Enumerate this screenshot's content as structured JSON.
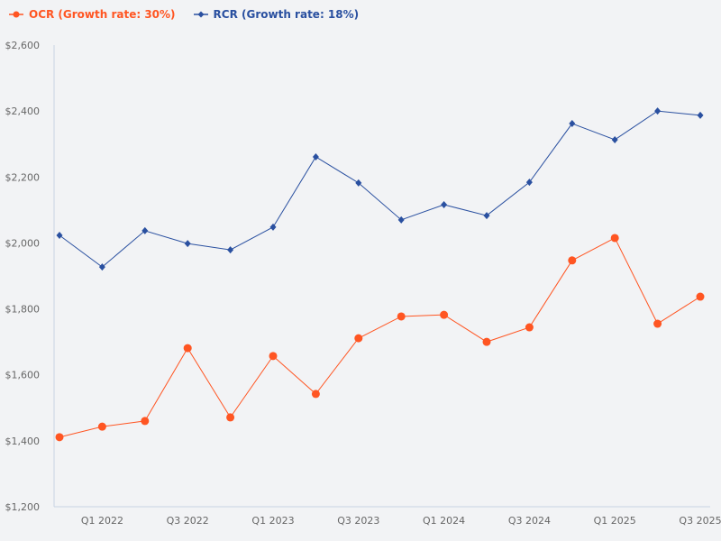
{
  "chart_data": {
    "type": "line",
    "title": "",
    "xlabel": "",
    "ylabel": "",
    "ylim": [
      1200,
      2600
    ],
    "yticks": [
      1200,
      1400,
      1600,
      1800,
      2000,
      2200,
      2400,
      2600
    ],
    "ytick_labels": [
      "$1,200",
      "$1,400",
      "$1,600",
      "$1,800",
      "$2,000",
      "$2,200",
      "$2,400",
      "$2,600"
    ],
    "x": [
      "Q4 2021",
      "Q1 2022",
      "Q2 2022",
      "Q3 2022",
      "Q4 2022",
      "Q1 2023",
      "Q2 2023",
      "Q3 2023",
      "Q4 2023",
      "Q1 2024",
      "Q2 2024",
      "Q3 2024",
      "Q4 2024",
      "Q1 2025",
      "Q2 2025",
      "Q3 2025"
    ],
    "xtick_labels": [
      "Q1 2022",
      "Q3 2022",
      "Q1 2023",
      "Q3 2023",
      "Q1 2024",
      "Q3 2024",
      "Q1 2025",
      "Q3 2025"
    ],
    "grid": false,
    "legend_position": "top-left",
    "series": [
      {
        "name": "OCR (Growth rate: 30%)",
        "color": "#ff5522",
        "marker": "circle",
        "values": [
          1411,
          1443,
          1460,
          1681,
          1471,
          1657,
          1542,
          1711,
          1777,
          1782,
          1700,
          1744,
          1947,
          2015,
          1755,
          1837
        ]
      },
      {
        "name": "RCR (Growth rate: 18%)",
        "color": "#2a50a0",
        "marker": "diamond",
        "values": [
          2023,
          1927,
          2037,
          1998,
          1979,
          2048,
          2261,
          2182,
          2070,
          2116,
          2083,
          2184,
          2362,
          2313,
          2400,
          2387
        ]
      }
    ]
  }
}
